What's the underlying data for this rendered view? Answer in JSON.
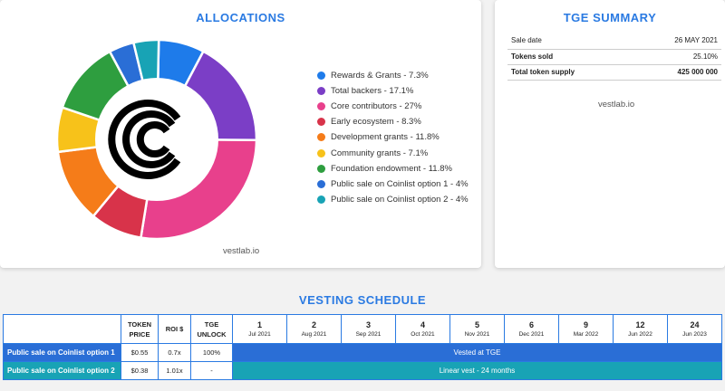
{
  "allocations": {
    "title": "ALLOCATIONS",
    "watermark": "vestlab.io"
  },
  "tge_summary": {
    "title": "TGE SUMMARY",
    "rows": [
      {
        "label": "Sale date",
        "value": "26 MAY 2021"
      },
      {
        "label": "Tokens sold",
        "value": "25.10%"
      },
      {
        "label": "Total token supply",
        "value": "425 000 000"
      }
    ],
    "watermark": "vestlab.io"
  },
  "chart_data": {
    "type": "pie",
    "donut": true,
    "legend_position": "right",
    "series": [
      {
        "name": "Rewards & Grants",
        "label": "Rewards & Grants - 7.3%",
        "value": 7.3,
        "color": "#1e7bea"
      },
      {
        "name": "Total backers",
        "label": "Total backers - 17.1%",
        "value": 17.1,
        "color": "#7b3ec6"
      },
      {
        "name": "Core contributors",
        "label": "Core contributors - 27%",
        "value": 27,
        "color": "#e8408c"
      },
      {
        "name": "Early ecosystem",
        "label": "Early ecosystem - 8.3%",
        "value": 8.3,
        "color": "#d8334a"
      },
      {
        "name": "Development grants",
        "label": "Development grants - 11.8%",
        "value": 11.8,
        "color": "#f57c19"
      },
      {
        "name": "Community grants",
        "label": "Community grants - 7.1%",
        "value": 7.1,
        "color": "#f7c21a"
      },
      {
        "name": "Foundation endowment",
        "label": "Foundation endowment - 11.8%",
        "value": 11.8,
        "color": "#2e9e3f"
      },
      {
        "name": "Public sale on Coinlist option 1",
        "label": "Public sale on Coinlist option 1 - 4%",
        "value": 4,
        "color": "#2a6ed6"
      },
      {
        "name": "Public sale on Coinlist option 2",
        "label": "Public sale on Coinlist option 2 - 4%",
        "value": 4,
        "color": "#18a3b5"
      }
    ]
  },
  "vesting": {
    "title": "VESTING SCHEDULE",
    "headers": {
      "token_price": "TOKEN PRICE",
      "roi": "ROI $",
      "tge_unlock": "TGE UNLOCK"
    },
    "months": [
      {
        "num": "1",
        "date": "Jul 2021"
      },
      {
        "num": "2",
        "date": "Aug 2021"
      },
      {
        "num": "3",
        "date": "Sep 2021"
      },
      {
        "num": "4",
        "date": "Oct 2021"
      },
      {
        "num": "5",
        "date": "Nov 2021"
      },
      {
        "num": "6",
        "date": "Dec 2021"
      },
      {
        "num": "9",
        "date": "Mar 2022"
      },
      {
        "num": "12",
        "date": "Jun 2022"
      },
      {
        "num": "24",
        "date": "Jun 2023"
      }
    ],
    "rows": [
      {
        "label": "Public sale on Coinlist option 1",
        "price": "$0.55",
        "roi": "0.7x",
        "tge": "100%",
        "schedule": "Vested at TGE"
      },
      {
        "label": "Public sale on Coinlist option 2",
        "price": "$0.38",
        "roi": "1.01x",
        "tge": "-",
        "schedule": "Linear vest - 24 months"
      }
    ]
  }
}
